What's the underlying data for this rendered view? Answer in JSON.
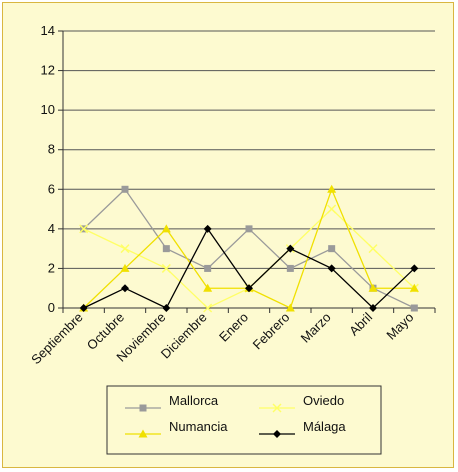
{
  "chart_data": {
    "type": "line",
    "categories": [
      "Septiembre",
      "Octubre",
      "Noviembre",
      "Diciembre",
      "Enero",
      "Febrero",
      "Marzo",
      "Abril",
      "Mayo"
    ],
    "ylim": [
      0,
      14
    ],
    "yticks": [
      0,
      2,
      4,
      6,
      8,
      10,
      12,
      14
    ],
    "grid": true,
    "legend_position": "bottom",
    "series": [
      {
        "name": "Mallorca",
        "color": "#9a9a9a",
        "marker": "square",
        "values": [
          4,
          6,
          3,
          2,
          4,
          2,
          3,
          1,
          0
        ]
      },
      {
        "name": "Oviedo",
        "color": "#ffff66",
        "marker": "x",
        "values": [
          4,
          3,
          2,
          0,
          1,
          3,
          5,
          3,
          1
        ]
      },
      {
        "name": "Numancia",
        "color": "#f0e000",
        "marker": "triangle",
        "values": [
          0,
          2,
          4,
          1,
          1,
          0,
          6,
          1,
          1
        ]
      },
      {
        "name": "Málaga",
        "color": "#000000",
        "marker": "diamond",
        "values": [
          0,
          1,
          0,
          4,
          1,
          3,
          2,
          0,
          2
        ]
      }
    ]
  }
}
